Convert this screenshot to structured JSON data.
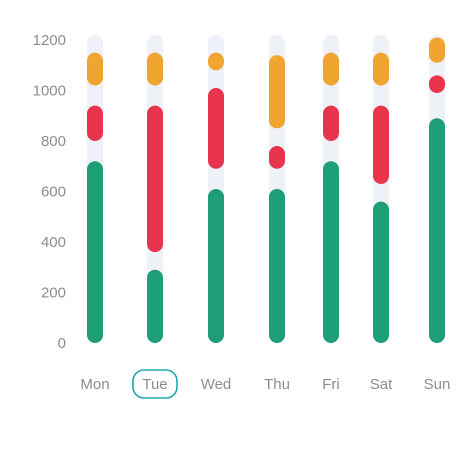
{
  "chart_data": {
    "type": "bar",
    "stacked": true,
    "categories": [
      "Mon",
      "Tue",
      "Wed",
      "Thu",
      "Fri",
      "Sat",
      "Sun"
    ],
    "selected_category": "Tue",
    "ylim": [
      0,
      1200
    ],
    "yticks": [
      "1200",
      "1000",
      "800",
      "600",
      "400",
      "200",
      "0"
    ],
    "grid": false,
    "legend": "none",
    "series": [
      {
        "color": "#1e9e77",
        "values": [
          [
            0,
            720
          ],
          [
            0,
            290
          ],
          [
            0,
            610
          ],
          [
            0,
            610
          ],
          [
            0,
            720
          ],
          [
            0,
            560
          ],
          [
            0,
            890
          ]
        ]
      },
      {
        "color": "#e8344d",
        "values": [
          [
            800,
            940
          ],
          [
            360,
            940
          ],
          [
            690,
            1010
          ],
          [
            690,
            780
          ],
          [
            800,
            940
          ],
          [
            630,
            940
          ],
          [
            990,
            1060
          ]
        ]
      },
      {
        "color": "#efa530",
        "values": [
          [
            1020,
            1150
          ],
          [
            1020,
            1150
          ],
          [
            1080,
            1150
          ],
          [
            850,
            1140
          ],
          [
            1020,
            1150
          ],
          [
            1020,
            1150
          ],
          [
            1110,
            1210
          ]
        ]
      }
    ],
    "track_color": "#eef1f8",
    "track_top": 1220
  }
}
